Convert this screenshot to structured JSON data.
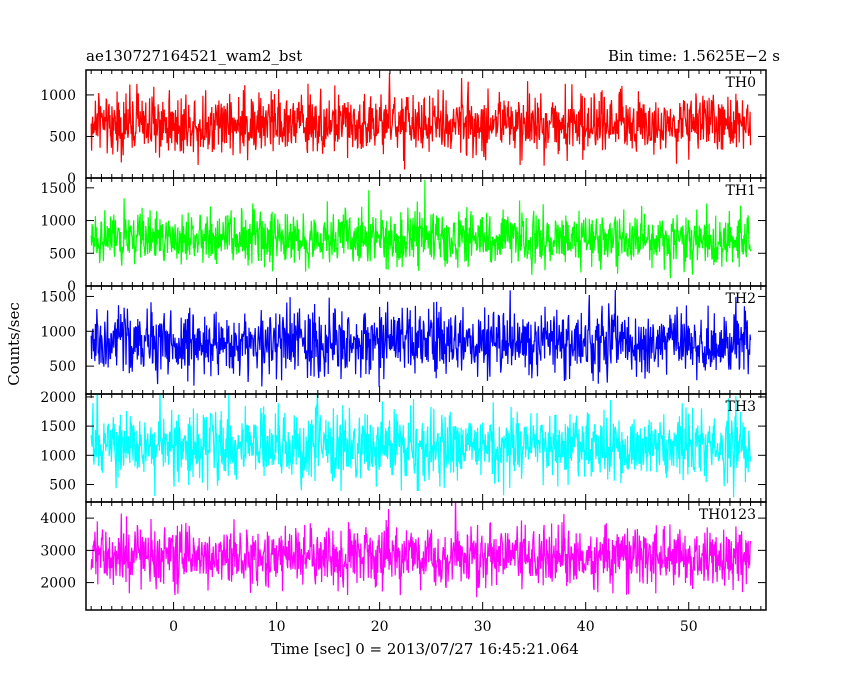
{
  "chart_data": {
    "type": "line",
    "title": "ae130727164521_wam2_bst",
    "bin_time_label": "Bin time: 1.5625E−2 s",
    "xlabel": "Time [sec] 0 = 2013/07/27 16:45:21.064",
    "ylabel": "Counts/sec",
    "xlim": [
      -8.5,
      57.5
    ],
    "x_data_range": [
      -8,
      56
    ],
    "x_ticks": [
      0,
      10,
      20,
      30,
      40,
      50
    ],
    "panels": [
      {
        "name": "TH0",
        "color": "#ff0000",
        "ylim": [
          0,
          1300
        ],
        "y_ticks": [
          0,
          500,
          1000
        ],
        "mean": 650,
        "spread": 430
      },
      {
        "name": "TH1",
        "color": "#00ff00",
        "ylim": [
          0,
          1650
        ],
        "y_ticks": [
          0,
          500,
          1000,
          1500
        ],
        "mean": 720,
        "spread": 480
      },
      {
        "name": "TH2",
        "color": "#0000ff",
        "ylim": [
          100,
          1650
        ],
        "y_ticks": [
          500,
          1000,
          1500
        ],
        "mean": 830,
        "spread": 560
      },
      {
        "name": "TH3",
        "color": "#00ffff",
        "ylim": [
          200,
          2050
        ],
        "y_ticks": [
          500,
          1000,
          1500,
          2000
        ],
        "mean": 1150,
        "spread": 700
      },
      {
        "name": "TH0123",
        "color": "#ff00ff",
        "ylim": [
          1150,
          4500
        ],
        "y_ticks": [
          2000,
          3000,
          4000
        ],
        "mean": 2800,
        "spread": 1100
      }
    ]
  }
}
